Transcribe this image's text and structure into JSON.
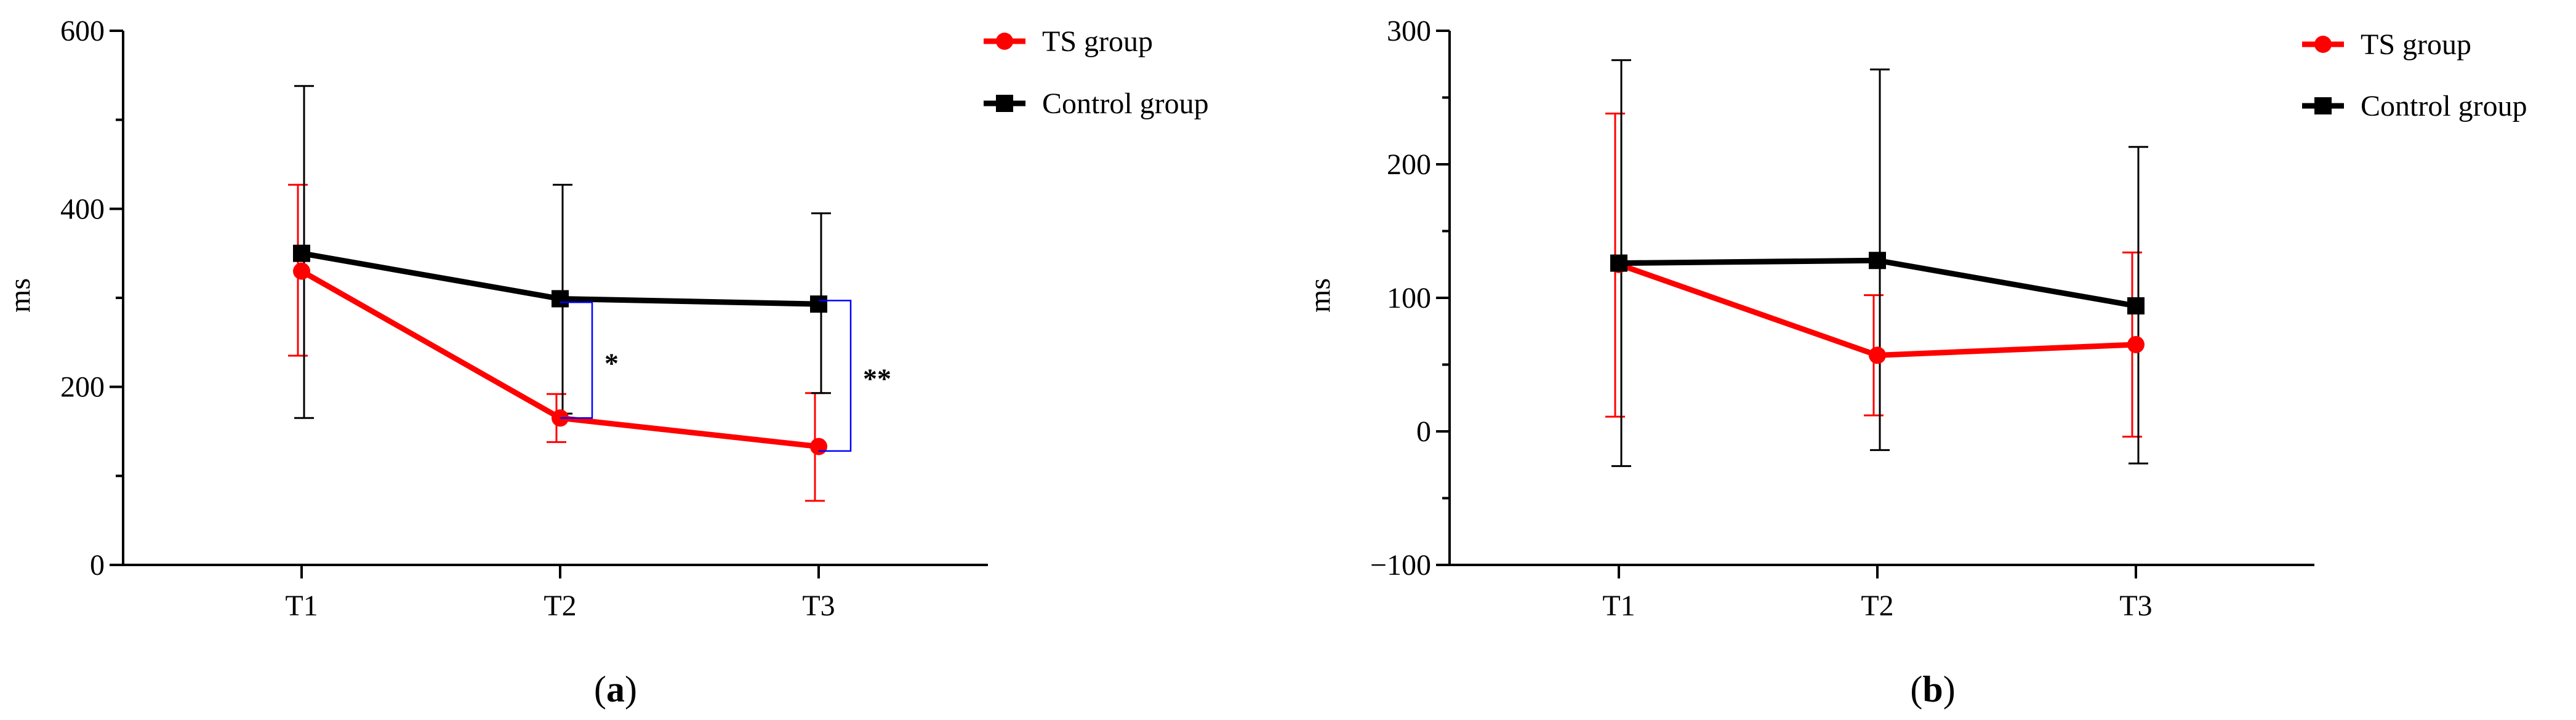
{
  "chart_data": [
    {
      "panel_label": "(a)",
      "type": "line",
      "ylabel": "ms",
      "xlabel": "",
      "title": "",
      "categories": [
        "T1",
        "T2",
        "T3"
      ],
      "ylim": [
        0,
        600
      ],
      "yticks": [
        0,
        200,
        400,
        600
      ],
      "ytick_labels": [
        "0",
        "200",
        "400",
        "600"
      ],
      "legend_position": "top-right, outside plot",
      "grid": false,
      "series": [
        {
          "name": "TS group",
          "color": "#ff0000",
          "marker": "circle",
          "values": [
            330,
            165,
            133
          ],
          "err_low": [
            235,
            138,
            72
          ],
          "err_high": [
            427,
            192,
            193
          ]
        },
        {
          "name": "Control group",
          "color": "#000000",
          "marker": "square",
          "values": [
            350,
            299,
            293
          ],
          "err_low": [
            165,
            170,
            193
          ],
          "err_high": [
            538,
            427,
            395
          ]
        }
      ],
      "significance": [
        {
          "category": "T2",
          "label": "*",
          "from": 165,
          "to": 295,
          "color": "#0000ff"
        },
        {
          "category": "T3",
          "label": "**",
          "from": 128,
          "to": 297,
          "color": "#0000ff"
        }
      ]
    },
    {
      "panel_label": "(b)",
      "type": "line",
      "ylabel": "ms",
      "xlabel": "",
      "title": "",
      "categories": [
        "T1",
        "T2",
        "T3"
      ],
      "ylim": [
        -100,
        300
      ],
      "yticks": [
        -100,
        0,
        100,
        200,
        300
      ],
      "ytick_labels": [
        "−100",
        "0",
        "100",
        "200",
        "300"
      ],
      "legend_position": "top-right, inside plot",
      "grid": false,
      "series": [
        {
          "name": "TS group",
          "color": "#ff0000",
          "marker": "circle",
          "values": [
            125,
            57,
            65
          ],
          "err_low": [
            11,
            12,
            -4
          ],
          "err_high": [
            238,
            102,
            134
          ]
        },
        {
          "name": "Control group",
          "color": "#000000",
          "marker": "square",
          "values": [
            126,
            128,
            94
          ],
          "err_low": [
            -26,
            -14,
            -24
          ],
          "err_high": [
            278,
            271,
            213
          ]
        }
      ],
      "significance": []
    }
  ]
}
